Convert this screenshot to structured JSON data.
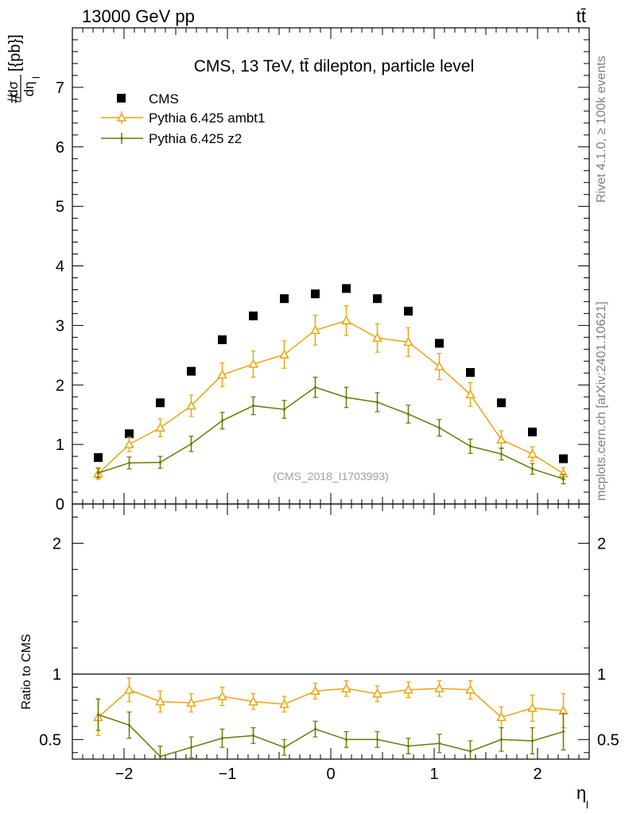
{
  "header": {
    "left": "13000 GeV pp",
    "right": "tt̄"
  },
  "side_labels": {
    "rivet": "Rivet 4.1.0, ≥ 100k events",
    "mcplots": "mcplots.cern.ch [arXiv:2401.10621]"
  },
  "chart_data": [
    {
      "type": "scatter",
      "panel": "main",
      "title": "CMS, 13 TeV, tt̄ dilepton, particle level",
      "watermark": "(CMS_2018_I1703993)",
      "ylabel": "#dσ/dη_l [{pb}]",
      "ylabel_parts": {
        "hash": "#",
        "numerator": "dσ",
        "denominator": "dη",
        "subscript": "l",
        "unit": "[{pb}]"
      },
      "xlim": [
        -2.5,
        2.5
      ],
      "ylim": [
        0,
        8
      ],
      "ytick_values": [
        0,
        1,
        2,
        3,
        4,
        5,
        6,
        7
      ],
      "ytick_labels": [
        "0",
        "1",
        "2",
        "3",
        "4",
        "5",
        "6",
        "7"
      ],
      "x": [
        -2.25,
        -1.95,
        -1.65,
        -1.35,
        -1.05,
        -0.75,
        -0.45,
        -0.15,
        0.15,
        0.45,
        0.75,
        1.05,
        1.35,
        1.65,
        1.95,
        2.25
      ],
      "series": [
        {
          "name": "CMS",
          "style": "square",
          "color": "#000000",
          "values": [
            0.78,
            1.18,
            1.7,
            2.23,
            2.76,
            3.16,
            3.45,
            3.53,
            3.62,
            3.45,
            3.24,
            2.7,
            2.21,
            1.7,
            1.21,
            0.76
          ],
          "errors": [
            0,
            0,
            0,
            0,
            0,
            0,
            0,
            0,
            0,
            0,
            0,
            0,
            0,
            0,
            0,
            0
          ]
        },
        {
          "name": "Pythia 6.425 ambt1",
          "style": "triangle",
          "color": "#f0a30a",
          "values": [
            0.51,
            1.0,
            1.28,
            1.65,
            2.17,
            2.35,
            2.51,
            2.92,
            3.08,
            2.79,
            2.72,
            2.31,
            1.84,
            1.08,
            0.84,
            0.51
          ],
          "errors": [
            0.1,
            0.12,
            0.15,
            0.18,
            0.2,
            0.22,
            0.23,
            0.25,
            0.25,
            0.24,
            0.24,
            0.22,
            0.2,
            0.15,
            0.12,
            0.1
          ]
        },
        {
          "name": "Pythia 6.425 z2",
          "style": "dot",
          "color": "#6b7a00",
          "values": [
            0.52,
            0.69,
            0.7,
            1.01,
            1.4,
            1.65,
            1.59,
            1.96,
            1.79,
            1.71,
            1.51,
            1.28,
            0.97,
            0.84,
            0.59,
            0.42
          ],
          "errors": [
            0.08,
            0.1,
            0.1,
            0.13,
            0.14,
            0.15,
            0.15,
            0.17,
            0.17,
            0.16,
            0.15,
            0.14,
            0.12,
            0.1,
            0.09,
            0.08
          ]
        }
      ]
    },
    {
      "type": "line",
      "panel": "ratio",
      "ylabel": "Ratio to CMS",
      "xlabel": "η_l",
      "xlabel_parts": {
        "symbol": "η",
        "subscript": "l"
      },
      "xlim": [
        -2.5,
        2.5
      ],
      "ylim": [
        0.35,
        2.3
      ],
      "xtick_values": [
        -2,
        -1,
        0,
        1,
        2
      ],
      "xtick_labels": [
        "−2",
        "−1",
        "0",
        "1",
        "2"
      ],
      "ytick_values": [
        0.5,
        1,
        2
      ],
      "ytick_labels": [
        "0.5",
        "1",
        "2"
      ],
      "reference": 1,
      "x": [
        -2.25,
        -1.95,
        -1.65,
        -1.35,
        -1.05,
        -0.75,
        -0.45,
        -0.15,
        0.15,
        0.45,
        0.75,
        1.05,
        1.35,
        1.65,
        1.95,
        2.25
      ],
      "series": [
        {
          "name": "Pythia 6.425 ambt1",
          "style": "triangle",
          "color": "#f0a30a",
          "values": [
            0.67,
            0.88,
            0.79,
            0.78,
            0.83,
            0.79,
            0.77,
            0.87,
            0.89,
            0.85,
            0.88,
            0.89,
            0.88,
            0.67,
            0.74,
            0.72
          ],
          "errors": [
            0.14,
            0.09,
            0.08,
            0.07,
            0.07,
            0.06,
            0.06,
            0.06,
            0.06,
            0.06,
            0.06,
            0.06,
            0.07,
            0.08,
            0.1,
            0.13
          ]
        },
        {
          "name": "Pythia 6.425 z2",
          "style": "dot",
          "color": "#6b7a00",
          "values": [
            0.69,
            0.61,
            0.37,
            0.44,
            0.51,
            0.53,
            0.44,
            0.58,
            0.5,
            0.5,
            0.45,
            0.47,
            0.41,
            0.5,
            0.49,
            0.56
          ],
          "errors": [
            0.12,
            0.1,
            0.08,
            0.08,
            0.07,
            0.06,
            0.06,
            0.06,
            0.06,
            0.06,
            0.06,
            0.07,
            0.08,
            0.09,
            0.1,
            0.14
          ]
        }
      ]
    }
  ]
}
